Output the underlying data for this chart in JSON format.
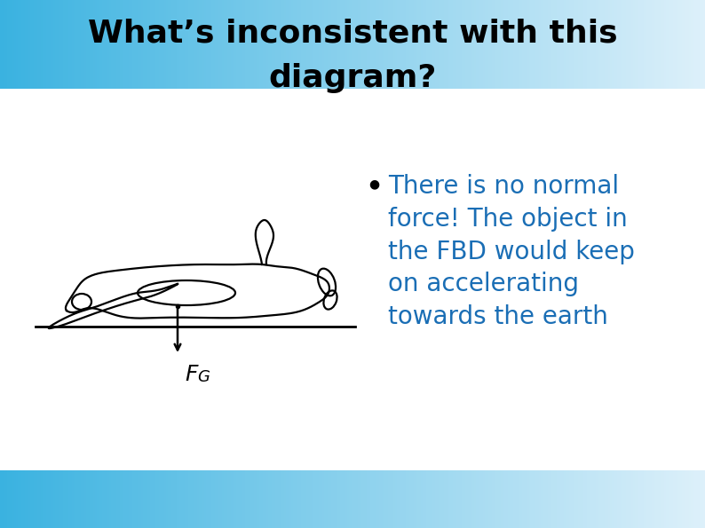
{
  "title_line1": "What’s inconsistent with this",
  "title_line2": "diagram?",
  "title_color": "#000000",
  "title_fontsize": 26,
  "bullet_text": "There is no normal\nforce! The object in\nthe FBD would keep\non accelerating\ntowards the earth",
  "bullet_color": "#1a6eb5",
  "bullet_fontsize": 20,
  "header_grad_left": "#3ab2e0",
  "header_grad_right": "#ddf0fa",
  "footer_grad_left": "#3ab2e0",
  "footer_grad_right": "#ddf0fa",
  "bg_color": "#ffffff",
  "fg_label_color": "#000000",
  "fg_label_fontsize": 18,
  "arrow_color": "#000000"
}
